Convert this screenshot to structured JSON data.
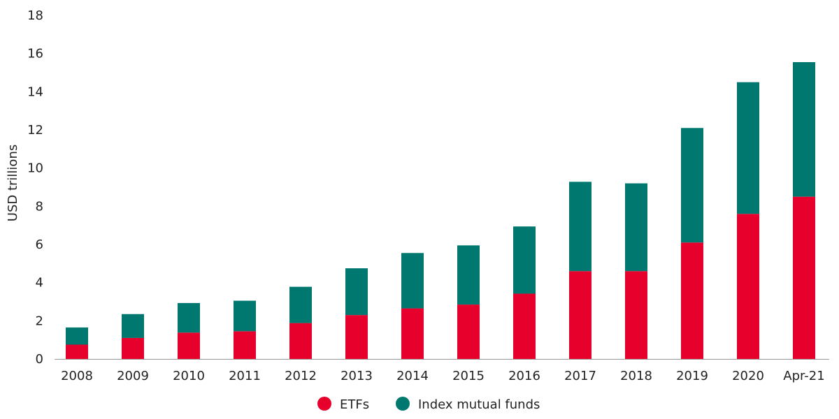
{
  "chart_data": {
    "type": "bar",
    "stacked": true,
    "ylabel": "USD trillions",
    "ylim": [
      0,
      18
    ],
    "yticks": [
      0,
      2,
      4,
      6,
      8,
      10,
      12,
      14,
      16,
      18
    ],
    "categories": [
      "2008",
      "2009",
      "2010",
      "2011",
      "2012",
      "2013",
      "2014",
      "2015",
      "2016",
      "2017",
      "2018",
      "2019",
      "2020",
      "Apr-21"
    ],
    "series": [
      {
        "name": "ETFs",
        "color": "#e8002d",
        "values": [
          0.75,
          1.1,
          1.38,
          1.45,
          1.88,
          2.3,
          2.65,
          2.85,
          3.42,
          4.6,
          4.6,
          6.1,
          7.6,
          8.5
        ]
      },
      {
        "name": "Index mutual funds",
        "color": "#00786f",
        "values": [
          0.9,
          1.25,
          1.55,
          1.6,
          1.9,
          2.45,
          2.9,
          3.1,
          3.52,
          4.68,
          4.6,
          6.0,
          6.9,
          7.05
        ]
      }
    ],
    "grid": false,
    "legend": "bottom-center"
  }
}
